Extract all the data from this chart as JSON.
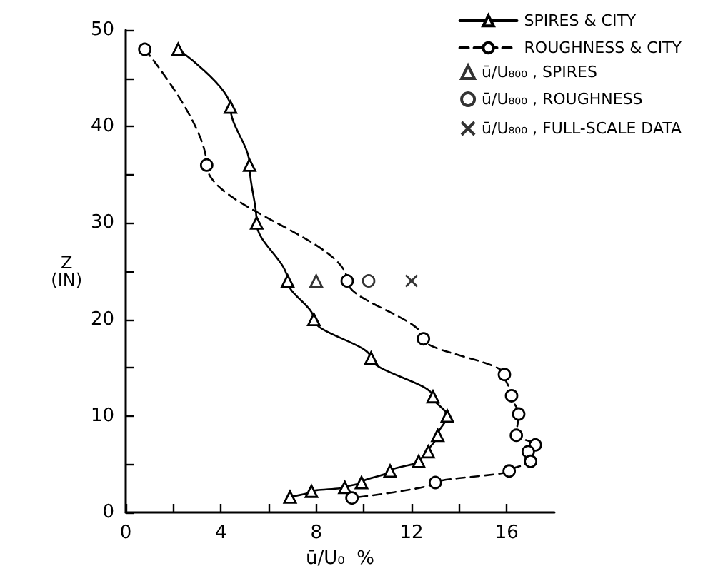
{
  "chart_data": {
    "type": "line",
    "xlabel": "ū/U₀  %",
    "ylabel": "Z\n(IN)",
    "xlim": [
      0,
      18
    ],
    "xticks": [
      0,
      {
        "value": 2,
        "label": null
      },
      4,
      {
        "value": 6,
        "label": null
      },
      8,
      {
        "value": 10,
        "label": null
      },
      12,
      {
        "value": 14,
        "label": null
      },
      16
    ],
    "ylim": [
      0,
      50
    ],
    "yticks": [
      0,
      {
        "value": 5,
        "label": null
      },
      10,
      {
        "value": 15,
        "label": null
      },
      20,
      {
        "value": 25,
        "label": null
      },
      30,
      {
        "value": 35,
        "label": null
      },
      40,
      {
        "value": 45,
        "label": null
      },
      50
    ],
    "grid": false,
    "legend": "top right",
    "series": [
      {
        "name": "SPIRES & CITY",
        "color": "#000000",
        "marker": "triangle",
        "line_style": "solid",
        "x": [
          2.2,
          4.4,
          5.2,
          5.5,
          6.8,
          7.9,
          10.3,
          12.9,
          13.5,
          13.1,
          12.7,
          12.3,
          11.1,
          9.9,
          9.2,
          7.8,
          6.9
        ],
        "values": [
          48,
          42,
          36,
          30,
          24,
          20,
          16,
          12,
          10,
          8,
          6.3,
          5.3,
          4.3,
          3.1,
          2.6,
          2.2,
          1.6
        ]
      },
      {
        "name": "ROUGHNESS & CITY",
        "color": "#000000",
        "marker": "circle",
        "line_style": "dashed",
        "x": [
          0.8,
          3.4,
          9.3,
          12.5,
          15.9,
          16.2,
          16.5,
          16.4,
          17.2,
          16.9,
          17.0,
          16.1,
          13.0,
          9.5
        ],
        "values": [
          48,
          36,
          24,
          18,
          14.3,
          12.1,
          10.2,
          8.0,
          7.0,
          6.3,
          5.3,
          4.3,
          3.1,
          1.5
        ]
      },
      {
        "name": "ū/U₈₀₀ , SPIRES",
        "type": "scatter",
        "color": "#000000",
        "marker": "triangle",
        "x": [
          8.0
        ],
        "values": [
          24
        ]
      },
      {
        "name": "ū/U₈₀₀ , ROUGHNESS",
        "type": "scatter",
        "color": "#000000",
        "marker": "circle",
        "x": [
          10.2
        ],
        "values": [
          24
        ]
      },
      {
        "name": "ū/U₈₀₀ , FULL-SCALE DATA",
        "type": "scatter",
        "color": "#000000",
        "marker": "cross",
        "x": [
          12.0
        ],
        "values": [
          24
        ]
      }
    ]
  }
}
